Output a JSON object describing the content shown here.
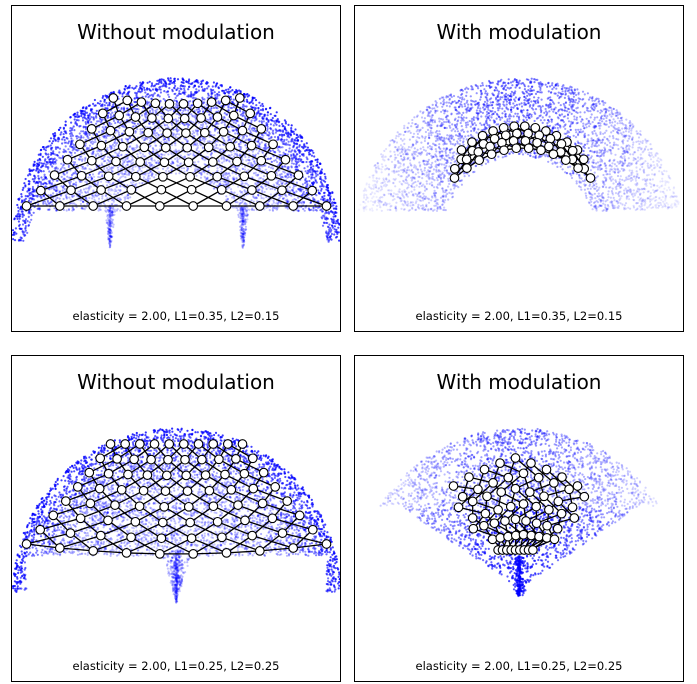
{
  "figure": {
    "panels": [
      {
        "title": "Without modulation",
        "caption": "elasticity = 2.00, L1=0.35, L2=0.15"
      },
      {
        "title": "With modulation",
        "caption": "elasticity = 2.00, L1=0.35, L2=0.15"
      },
      {
        "title": "Without modulation",
        "caption": "elasticity = 2.00, L1=0.25, L2=0.25"
      },
      {
        "title": "With modulation",
        "caption": "elasticity = 2.00, L1=0.25, L2=0.25"
      }
    ]
  },
  "chart_data": [
    {
      "type": "scatter",
      "title": "Without modulation",
      "annotation": "elasticity = 2.00, L1=0.35, L2=0.15",
      "elasticity": 2.0,
      "L1": 0.35,
      "L2": 0.15,
      "modulation": false,
      "point_color": "#0000ff",
      "node_fill": "#ffffff",
      "node_stroke": "#000000",
      "grid": false,
      "axes_ticks": false,
      "mesh": {
        "rows": 8,
        "cols": 10
      }
    },
    {
      "type": "scatter",
      "title": "With modulation",
      "annotation": "elasticity = 2.00, L1=0.35, L2=0.15",
      "elasticity": 2.0,
      "L1": 0.35,
      "L2": 0.15,
      "modulation": true,
      "point_color": "#0000ff",
      "node_fill": "#ffffff",
      "node_stroke": "#000000",
      "grid": false,
      "axes_ticks": false,
      "mesh": {
        "rows": 4,
        "cols": 12
      }
    },
    {
      "type": "scatter",
      "title": "Without modulation",
      "annotation": "elasticity = 2.00, L1=0.25, L2=0.25",
      "elasticity": 2.0,
      "L1": 0.25,
      "L2": 0.25,
      "modulation": false,
      "point_color": "#0000ff",
      "node_fill": "#ffffff",
      "node_stroke": "#000000",
      "grid": false,
      "axes_ticks": false,
      "mesh": {
        "rows": 8,
        "cols": 10
      }
    },
    {
      "type": "scatter",
      "title": "With modulation",
      "annotation": "elasticity = 2.00, L1=0.25, L2=0.25",
      "elasticity": 2.0,
      "L1": 0.25,
      "L2": 0.25,
      "modulation": true,
      "point_color": "#0000ff",
      "node_fill": "#ffffff",
      "node_stroke": "#000000",
      "grid": false,
      "axes_ticks": false,
      "mesh": {
        "rows": 7,
        "cols": 9
      }
    }
  ]
}
